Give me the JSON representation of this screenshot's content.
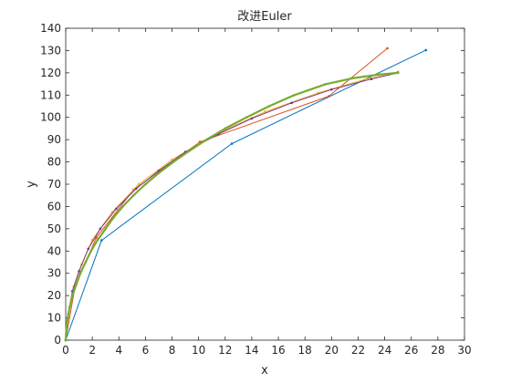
{
  "chart_data": {
    "type": "line",
    "title": "改进Euler",
    "xlabel": "x",
    "ylabel": "y",
    "xlim": [
      0,
      30
    ],
    "ylim": [
      0,
      140
    ],
    "xticks": [
      0,
      2,
      4,
      6,
      8,
      10,
      12,
      14,
      16,
      18,
      20,
      22,
      24,
      26,
      28,
      30
    ],
    "yticks": [
      0,
      10,
      20,
      30,
      40,
      50,
      60,
      70,
      80,
      90,
      100,
      110,
      120,
      130,
      140
    ],
    "grid": false,
    "legend": "none",
    "series": [
      {
        "color": "#0072BD",
        "marker": "point",
        "points": [
          [
            0,
            0
          ],
          [
            2.7,
            44.8
          ],
          [
            12.5,
            88.2
          ],
          [
            27.1,
            130.2
          ]
        ]
      },
      {
        "color": "#D95319",
        "marker": "point",
        "points": [
          [
            0,
            0
          ],
          [
            0.7,
            24
          ],
          [
            2.3,
            46
          ],
          [
            5.1,
            67.5
          ],
          [
            10.1,
            89
          ],
          [
            19.8,
            109.5
          ],
          [
            24.2,
            131
          ]
        ]
      },
      {
        "color": "#EDB120",
        "marker": "point",
        "points": [
          [
            0,
            0
          ],
          [
            0.2,
            12
          ],
          [
            0.6,
            24
          ],
          [
            1.2,
            34
          ],
          [
            2,
            45
          ],
          [
            3.5,
            57.5
          ],
          [
            5.5,
            70
          ],
          [
            8,
            81
          ],
          [
            11.5,
            93
          ],
          [
            15,
            102.5
          ],
          [
            19,
            111
          ],
          [
            22.5,
            117
          ],
          [
            25,
            120.5
          ]
        ]
      },
      {
        "color": "#7E2F8E",
        "marker": "point",
        "points": [
          [
            0,
            0
          ],
          [
            0.15,
            10
          ],
          [
            0.5,
            22
          ],
          [
            1,
            31
          ],
          [
            1.7,
            41
          ],
          [
            2.6,
            50
          ],
          [
            3.8,
            59
          ],
          [
            5.3,
            68
          ],
          [
            7,
            76
          ],
          [
            9,
            84.5
          ],
          [
            11.5,
            92.5
          ],
          [
            14,
            99.5
          ],
          [
            17,
            106.5
          ],
          [
            20,
            112.5
          ],
          [
            23,
            117.2
          ],
          [
            25,
            120
          ]
        ]
      },
      {
        "color": "#77AC30",
        "marker": "point",
        "points": [
          [
            0,
            0
          ],
          [
            0.05,
            5
          ],
          [
            0.15,
            10
          ],
          [
            0.3,
            15
          ],
          [
            0.5,
            20
          ],
          [
            0.8,
            25
          ],
          [
            1.1,
            30
          ],
          [
            1.5,
            35
          ],
          [
            1.9,
            40
          ],
          [
            2.4,
            45
          ],
          [
            3,
            50
          ],
          [
            3.6,
            55
          ],
          [
            4.3,
            60
          ],
          [
            5.1,
            65
          ],
          [
            6,
            70
          ],
          [
            7,
            75
          ],
          [
            8.1,
            80
          ],
          [
            9.3,
            85
          ],
          [
            10.6,
            90
          ],
          [
            12,
            95
          ],
          [
            13.6,
            100
          ],
          [
            15.3,
            105
          ],
          [
            17.2,
            110
          ],
          [
            19.5,
            114.8
          ],
          [
            21.5,
            117.5
          ],
          [
            23.5,
            119.2
          ],
          [
            25,
            120
          ]
        ]
      }
    ]
  }
}
